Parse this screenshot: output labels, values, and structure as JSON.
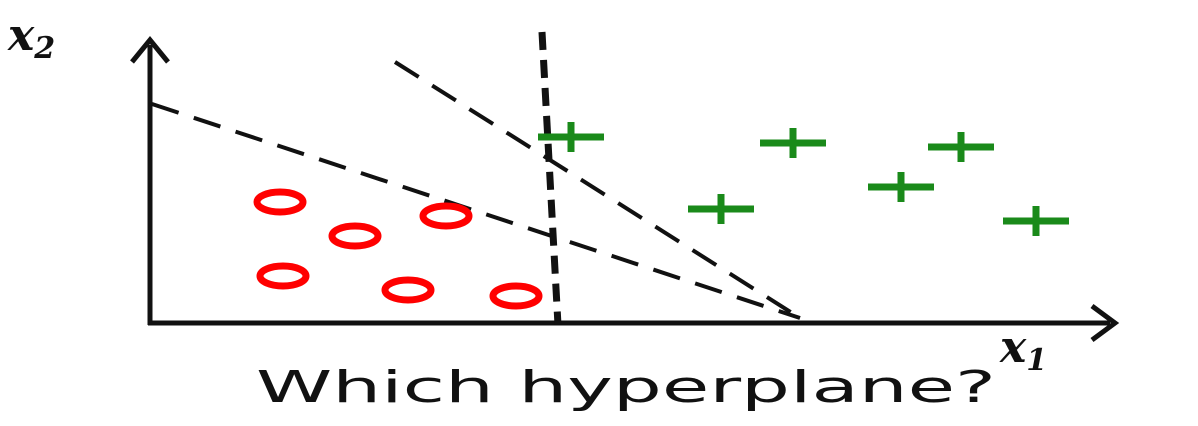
{
  "diagram": {
    "caption": "Which hyperplane?",
    "axes": {
      "x_label": "x",
      "x_sub": "1",
      "y_label": "x",
      "y_sub": "2"
    },
    "classes": [
      {
        "name": "",
        "marker": "circle",
        "color": "#ff0000"
      },
      {
        "name": "",
        "marker": "plus",
        "color": "#1a8a1a"
      }
    ],
    "hyperplane_count": 3,
    "line_color": "#111111"
  }
}
